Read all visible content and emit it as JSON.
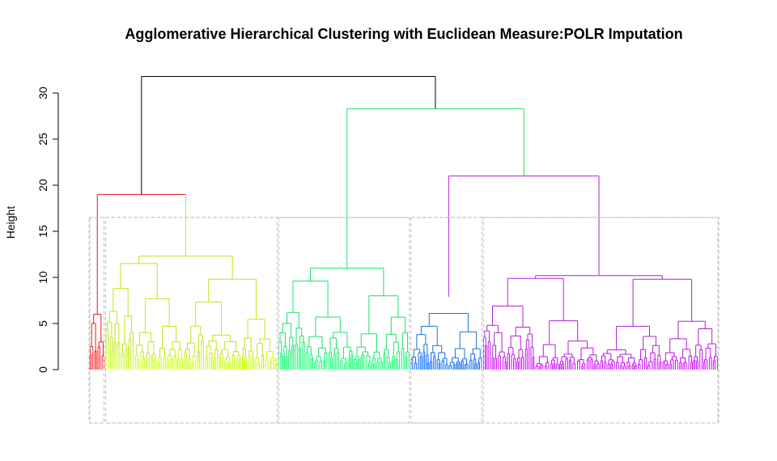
{
  "chart_data": {
    "type": "dendrogram",
    "title": "Agglomerative Hierarchical Clustering with Euclidean Measure:POLR Imputation",
    "xlabel": "",
    "ylabel": "Height",
    "ylim": [
      0,
      32
    ],
    "y_ticks": [
      0,
      5,
      10,
      15,
      20,
      25,
      30
    ],
    "y_tick_labels": [
      "0",
      "5",
      "10",
      "15",
      "20",
      "25",
      "30"
    ],
    "n_clusters": 5,
    "cut_height": 16.5,
    "root_height": 31.8,
    "top_merges": [
      {
        "name": "root",
        "height": 31.8
      },
      {
        "name": "red+yellow",
        "height": 19.0
      },
      {
        "name": "right-group",
        "height": 28.3
      },
      {
        "name": "blue+magenta",
        "height": 21.0
      }
    ],
    "clusters": [
      {
        "id": 1,
        "color": "#e31a1c",
        "leaf_color": "#ff0000",
        "share": 0.025,
        "height": 6.0,
        "sub_heights": [
          6.0,
          5.0,
          3.0,
          2.5,
          2.0
        ]
      },
      {
        "id": 2,
        "color": "#c8e01a",
        "leaf_color": "#c8ff00",
        "share": 0.275,
        "height": 19.0,
        "sub_heights": [
          12.3,
          11.5,
          9.8,
          8.8,
          7.7,
          6.3,
          5.8,
          5.1,
          5.0,
          4.4,
          3.5,
          3.0
        ]
      },
      {
        "id": 3,
        "color": "#1ee06a",
        "leaf_color": "#00ff66",
        "share": 0.21,
        "height": 16.6,
        "sub_heights": [
          11.0,
          9.6,
          8.0,
          6.2,
          5.7,
          5.0,
          4.5,
          4.0,
          3.5,
          3.0,
          2.5
        ]
      },
      {
        "id": 4,
        "color": "#1a6fdf",
        "leaf_color": "#0066ff",
        "share": 0.115,
        "height": 7.9,
        "sub_heights": [
          6.1,
          4.7,
          4.1,
          3.8,
          2.6,
          2.2
        ]
      },
      {
        "id": 5,
        "color": "#b21ed6",
        "leaf_color": "#cc00ff",
        "share": 0.375,
        "height": 16.3,
        "sub_heights": [
          10.2,
          10.0,
          9.8,
          6.9,
          5.3,
          4.8,
          4.6,
          4.2,
          4.0,
          3.5,
          3.0,
          2.5
        ]
      }
    ],
    "rect_color": "#bebebe"
  }
}
